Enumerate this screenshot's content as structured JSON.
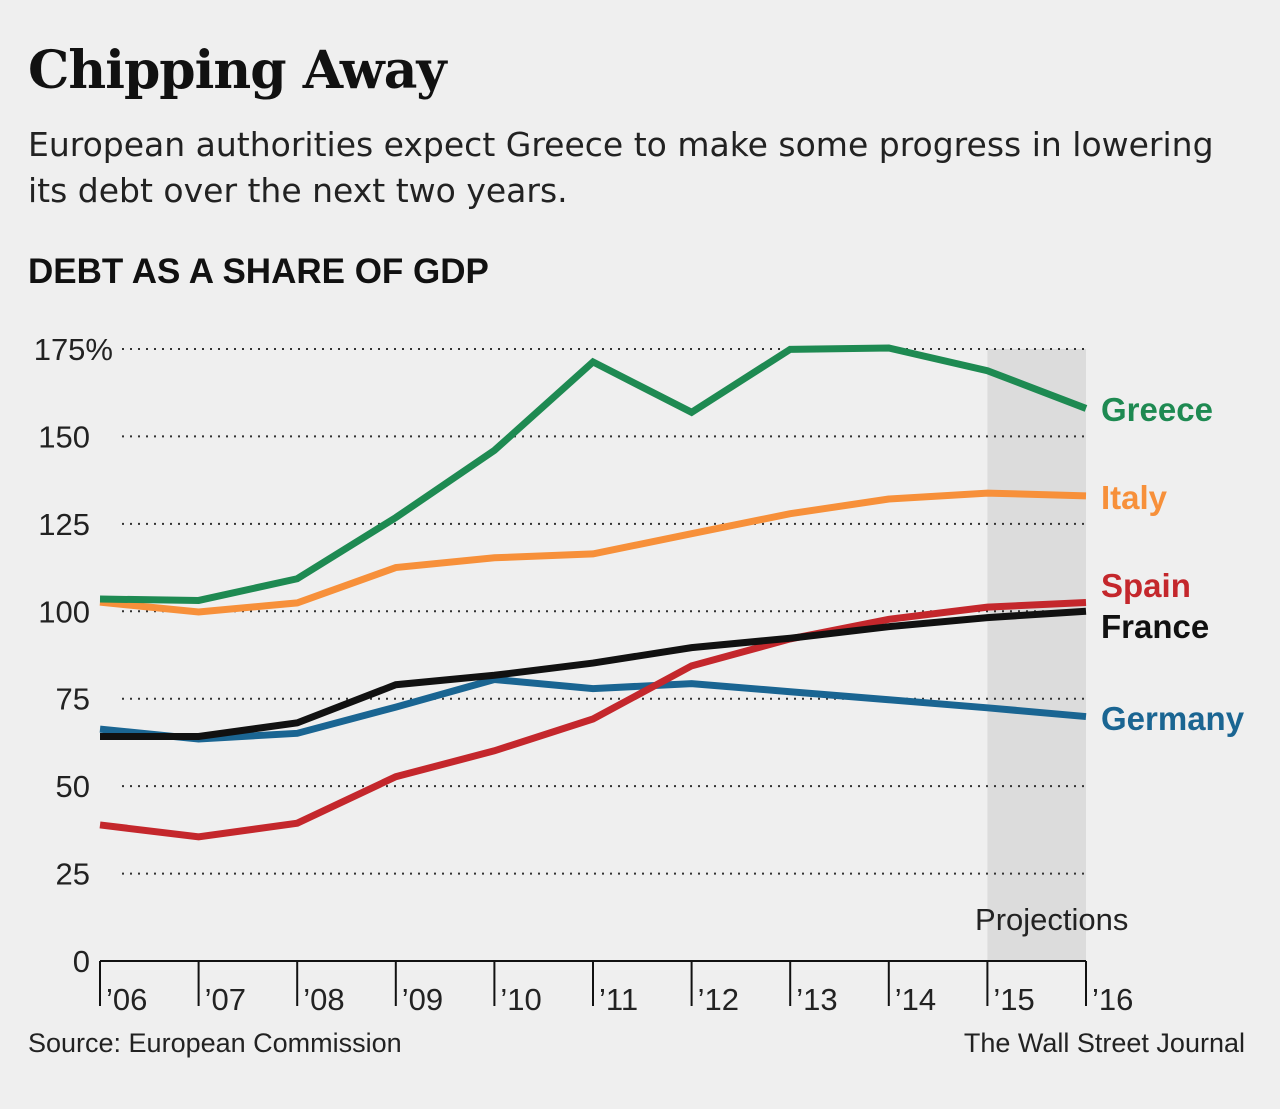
{
  "title": "Chipping Away",
  "subtitle": "European authorities expect Greece to make some progress in lowering its debt over the next two years.",
  "chart_label": "DEBT AS A SHARE OF GDP",
  "source": "Source: European Commission",
  "credit": "The Wall Street Journal",
  "chart_data": {
    "type": "line",
    "ylabel": "",
    "xlabel": "",
    "ylim": [
      0,
      175
    ],
    "y_ticks": [
      0,
      25,
      50,
      75,
      100,
      125,
      150,
      175
    ],
    "y_tick_labels": [
      "0",
      "25",
      "50",
      "75",
      "100",
      "125",
      "150",
      "175%"
    ],
    "x": [
      2006,
      2007,
      2008,
      2009,
      2010,
      2011,
      2012,
      2013,
      2014,
      2015,
      2016
    ],
    "x_tick_labels": [
      "’06",
      "’07",
      "’08",
      "’09",
      "’10",
      "’11",
      "’12",
      "’13",
      "’14",
      "’15",
      "’16"
    ],
    "grid": "dotted horizontal",
    "projection": {
      "label": "Projections",
      "from": 2015,
      "to": 2016
    },
    "series": [
      {
        "name": "Greece",
        "color": "#1e8a52",
        "values": [
          103.5,
          103.1,
          109.3,
          126.8,
          146.0,
          171.3,
          156.9,
          174.9,
          175.3,
          168.8,
          158.0
        ]
      },
      {
        "name": "Italy",
        "color": "#f7903a",
        "values": [
          102.6,
          99.8,
          102.4,
          112.5,
          115.3,
          116.4,
          122.2,
          127.9,
          132.1,
          133.8,
          133.0
        ]
      },
      {
        "name": "Spain",
        "color": "#c4272c",
        "values": [
          38.9,
          35.5,
          39.4,
          52.7,
          60.1,
          69.2,
          84.4,
          92.1,
          97.7,
          101.2,
          102.5
        ]
      },
      {
        "name": "France",
        "color": "#111111",
        "values": [
          64.2,
          64.2,
          68.1,
          79.0,
          81.7,
          85.2,
          89.6,
          92.3,
          95.6,
          98.2,
          100.0
        ]
      },
      {
        "name": "Germany",
        "color": "#1a6592",
        "values": [
          66.3,
          63.5,
          65.1,
          72.6,
          80.5,
          77.9,
          79.3,
          77.0,
          74.7,
          72.4,
          69.9
        ]
      }
    ]
  }
}
